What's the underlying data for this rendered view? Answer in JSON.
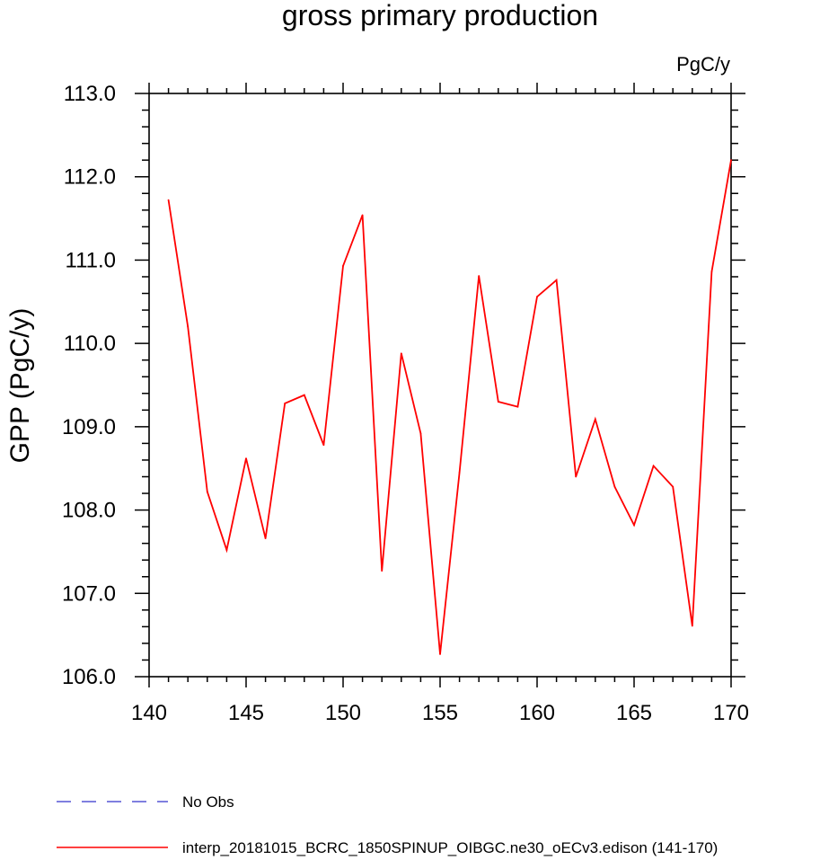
{
  "chart_data": {
    "type": "line",
    "title": "gross primary production",
    "units_label": "PgC/y",
    "ylabel": "GPP  (PgC/y)",
    "xlabel": "",
    "xlim": [
      140,
      170
    ],
    "ylim": [
      106.0,
      113.0
    ],
    "xticks": [
      140,
      145,
      150,
      155,
      160,
      165,
      170
    ],
    "yticks": [
      106.0,
      107.0,
      108.0,
      109.0,
      110.0,
      111.0,
      112.0,
      113.0
    ],
    "ytick_labels": [
      "106.0",
      "107.0",
      "108.0",
      "109.0",
      "110.0",
      "111.0",
      "112.0",
      "113.0"
    ],
    "grid": false,
    "legend_position": "bottom-left",
    "series": [
      {
        "name": "interp_20181015_BCRC_1850SPINUP_OIBGC.ne30_oECv3.edison (141-170)",
        "color": "#ff0000",
        "dash": "solid",
        "x": [
          141,
          142,
          143,
          144,
          145,
          146,
          147,
          148,
          149,
          150,
          151,
          152,
          153,
          154,
          155,
          156,
          157,
          158,
          159,
          160,
          161,
          162,
          163,
          164,
          165,
          166,
          167,
          168,
          169,
          170
        ],
        "values": [
          111.72,
          110.2,
          108.22,
          107.52,
          108.62,
          107.66,
          109.28,
          109.38,
          108.78,
          110.93,
          111.54,
          107.27,
          109.88,
          108.92,
          106.27,
          108.45,
          110.81,
          109.3,
          109.24,
          110.56,
          110.76,
          108.4,
          109.09,
          108.28,
          107.82,
          108.53,
          108.28,
          106.61,
          110.86,
          112.2
        ]
      }
    ],
    "legend": [
      {
        "label": "No Obs",
        "color": "#3333cc",
        "dash": "dashed"
      },
      {
        "label": "interp_20181015_BCRC_1850SPINUP_OIBGC.ne30_oECv3.edison (141-170)",
        "color": "#ff0000",
        "dash": "solid"
      }
    ]
  }
}
